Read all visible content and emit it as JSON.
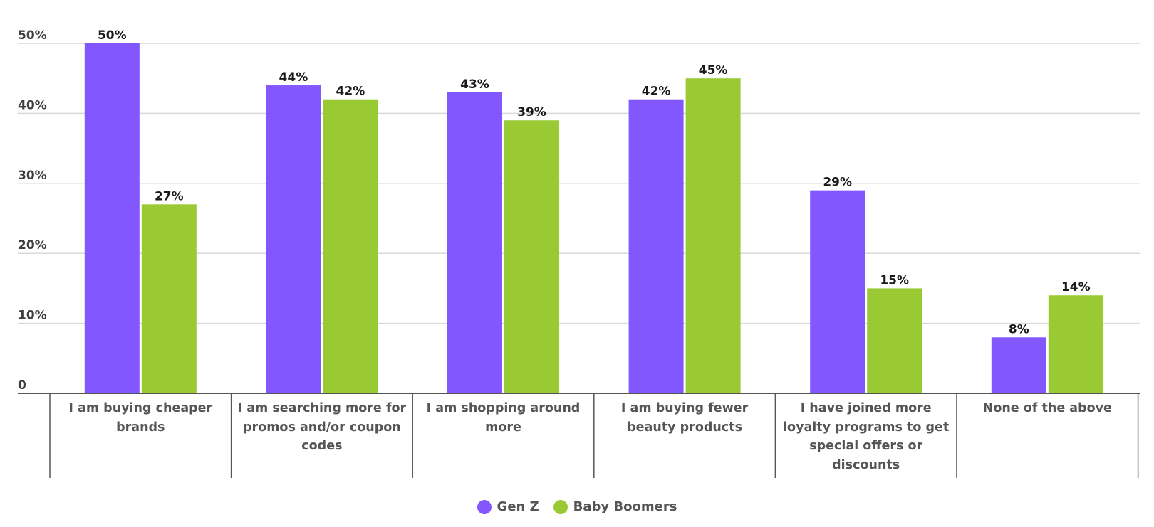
{
  "chart_data": {
    "type": "bar",
    "title": "",
    "xlabel": "",
    "ylabel": "",
    "ylim": [
      0,
      50
    ],
    "yticks": [
      {
        "value": 0,
        "label": "0"
      },
      {
        "value": 10,
        "label": "10%"
      },
      {
        "value": 20,
        "label": "20%"
      },
      {
        "value": 30,
        "label": "30%"
      },
      {
        "value": 40,
        "label": "40%"
      },
      {
        "value": 50,
        "label": "50%"
      }
    ],
    "grid": true,
    "legend_position": "bottom",
    "categories": [
      "I am buying cheaper brands",
      "I am searching more for promos and/or coupon codes",
      "I am shopping around more",
      "I am buying fewer beauty products",
      "I have joined more loyalty programs to get special offers or discounts",
      "None of the above"
    ],
    "series": [
      {
        "name": "Gen Z",
        "color": "#8257fe",
        "values": [
          50,
          44,
          43,
          42,
          29,
          8
        ],
        "labels": [
          "50%",
          "44%",
          "43%",
          "42%",
          "29%",
          "8%"
        ]
      },
      {
        "name": "Baby Boomers",
        "color": "#9aca33",
        "values": [
          27,
          42,
          39,
          45,
          15,
          14
        ],
        "labels": [
          "27%",
          "42%",
          "39%",
          "45%",
          "15%",
          "14%"
        ]
      }
    ]
  }
}
